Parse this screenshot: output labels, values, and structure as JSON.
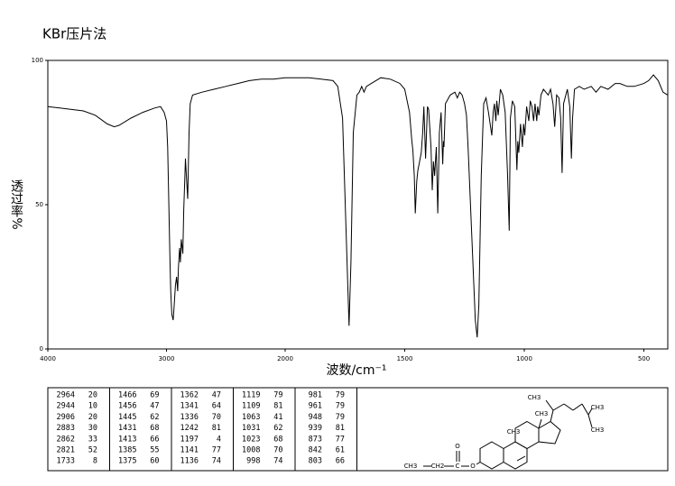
{
  "chart_data": {
    "type": "line",
    "title": "KBr压片法",
    "xlabel": "波数/cm⁻¹",
    "ylabel": "透过率%",
    "color": "#000000",
    "xlim": [
      4000,
      400
    ],
    "x_scale_break": 2000,
    "ylim": [
      0,
      100
    ],
    "xticks": [
      4000,
      3000,
      2000,
      1500,
      1000,
      500
    ],
    "yticks": [
      0,
      50,
      100
    ],
    "x": [
      4000,
      3900,
      3800,
      3700,
      3600,
      3500,
      3440,
      3400,
      3300,
      3200,
      3100,
      3050,
      3020,
      3000,
      2990,
      2980,
      2970,
      2964,
      2955,
      2944,
      2935,
      2925,
      2915,
      2906,
      2900,
      2890,
      2883,
      2875,
      2862,
      2855,
      2845,
      2840,
      2830,
      2821,
      2810,
      2800,
      2780,
      2700,
      2600,
      2500,
      2400,
      2300,
      2200,
      2100,
      2000,
      1900,
      1850,
      1800,
      1780,
      1760,
      1745,
      1733,
      1725,
      1715,
      1700,
      1690,
      1680,
      1670,
      1660,
      1640,
      1600,
      1560,
      1520,
      1500,
      1480,
      1470,
      1466,
      1460,
      1456,
      1450,
      1445,
      1440,
      1431,
      1425,
      1420,
      1413,
      1405,
      1400,
      1390,
      1385,
      1380,
      1375,
      1368,
      1362,
      1355,
      1348,
      1341,
      1338,
      1336,
      1330,
      1310,
      1290,
      1280,
      1270,
      1260,
      1250,
      1242,
      1235,
      1220,
      1205,
      1197,
      1190,
      1180,
      1170,
      1160,
      1150,
      1141,
      1136,
      1130,
      1125,
      1119,
      1115,
      1109,
      1100,
      1090,
      1080,
      1070,
      1063,
      1058,
      1050,
      1040,
      1031,
      1027,
      1023,
      1016,
      1008,
      1003,
      998,
      990,
      981,
      975,
      968,
      961,
      955,
      948,
      944,
      939,
      930,
      920,
      900,
      890,
      880,
      873,
      865,
      855,
      848,
      842,
      836,
      820,
      810,
      803,
      798,
      790,
      770,
      750,
      720,
      700,
      680,
      650,
      620,
      600,
      570,
      540,
      520,
      500,
      480,
      460,
      440,
      420,
      400
    ],
    "values": [
      84,
      83.5,
      83,
      82.5,
      81,
      78,
      77,
      77.5,
      80,
      82,
      83.5,
      84,
      82,
      79,
      70,
      50,
      30,
      20,
      12,
      10,
      15,
      22,
      25,
      20,
      28,
      35,
      30,
      38,
      33,
      48,
      60,
      66,
      58,
      52,
      75,
      85,
      88,
      89,
      90,
      91,
      92,
      93,
      93.5,
      93.5,
      94,
      94,
      93.5,
      93,
      91,
      80,
      40,
      8,
      30,
      75,
      88,
      89,
      91,
      89,
      91,
      92,
      94,
      93.5,
      92,
      90,
      82,
      72,
      69,
      60,
      47,
      58,
      62,
      64,
      68,
      75,
      84,
      66,
      84,
      83,
      70,
      55,
      65,
      60,
      70,
      47,
      75,
      82,
      64,
      72,
      70,
      85,
      88,
      89,
      87,
      89,
      88,
      85,
      81,
      70,
      40,
      10,
      4,
      15,
      60,
      85,
      87,
      82,
      77,
      74,
      82,
      85,
      79,
      86,
      81,
      90,
      88,
      82,
      60,
      41,
      80,
      86,
      84,
      62,
      72,
      68,
      78,
      70,
      78,
      74,
      84,
      79,
      86,
      84,
      79,
      85,
      79,
      84,
      81,
      88,
      90,
      88,
      90,
      85,
      77,
      88,
      87,
      80,
      61,
      85,
      90,
      84,
      66,
      80,
      90,
      91,
      90,
      91,
      89,
      91,
      90,
      92,
      92,
      91,
      91,
      91.5,
      92,
      93,
      95,
      93,
      89,
      88
    ]
  },
  "peak_table": {
    "columns": [
      [
        [
          2964,
          20
        ],
        [
          2944,
          10
        ],
        [
          2906,
          20
        ],
        [
          2883,
          30
        ],
        [
          2862,
          33
        ],
        [
          2821,
          52
        ],
        [
          1733,
          8
        ]
      ],
      [
        [
          1466,
          69
        ],
        [
          1456,
          47
        ],
        [
          1445,
          62
        ],
        [
          1431,
          68
        ],
        [
          1413,
          66
        ],
        [
          1385,
          55
        ],
        [
          1375,
          60
        ]
      ],
      [
        [
          1362,
          47
        ],
        [
          1341,
          64
        ],
        [
          1336,
          70
        ],
        [
          1242,
          81
        ],
        [
          1197,
          4
        ],
        [
          1141,
          77
        ],
        [
          1136,
          74
        ]
      ],
      [
        [
          1119,
          79
        ],
        [
          1109,
          81
        ],
        [
          1063,
          41
        ],
        [
          1031,
          62
        ],
        [
          1023,
          68
        ],
        [
          1008,
          70
        ],
        [
          998,
          74
        ]
      ],
      [
        [
          981,
          79
        ],
        [
          961,
          79
        ],
        [
          948,
          79
        ],
        [
          939,
          81
        ],
        [
          873,
          77
        ],
        [
          842,
          61
        ],
        [
          803,
          66
        ]
      ]
    ]
  },
  "structure": {
    "labels": [
      "CH3",
      "CH3",
      "CH3",
      "CH3",
      "CH3",
      "O",
      "CH3",
      "CH2",
      "C",
      "O"
    ]
  }
}
